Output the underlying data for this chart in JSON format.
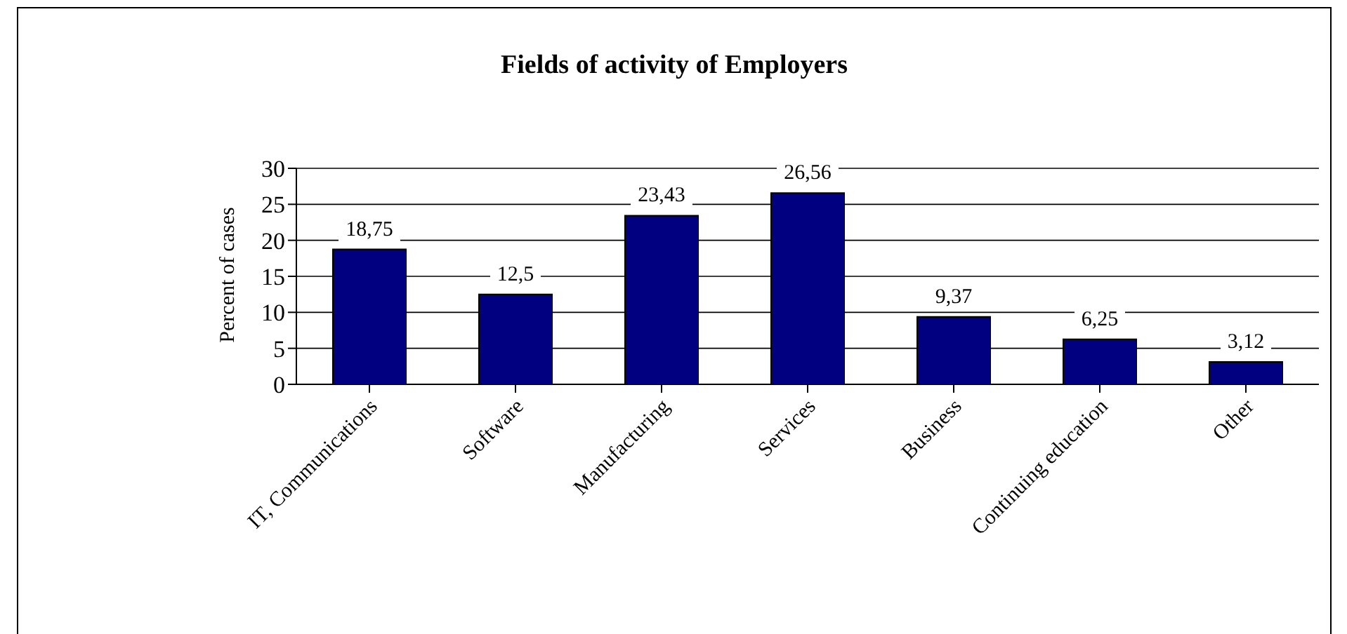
{
  "chart_data": {
    "type": "bar",
    "title": "Fields of activity of Employers",
    "ylabel": "Percent of cases",
    "categories": [
      "IT, Communications",
      "Software",
      "Manufacturing",
      "Services",
      "Business",
      "Continuing education",
      "Other"
    ],
    "values": [
      18.75,
      12.5,
      23.43,
      26.56,
      9.37,
      6.25,
      3.12
    ],
    "value_labels": [
      "18,75",
      "12,5",
      "23,43",
      "26,56",
      "9,37",
      "6,25",
      "3,12"
    ],
    "color": "#000080",
    "ylim": [
      0,
      30
    ],
    "yticks": [
      0,
      5,
      10,
      15,
      20,
      25,
      30
    ],
    "grid": "y",
    "legend": false
  }
}
